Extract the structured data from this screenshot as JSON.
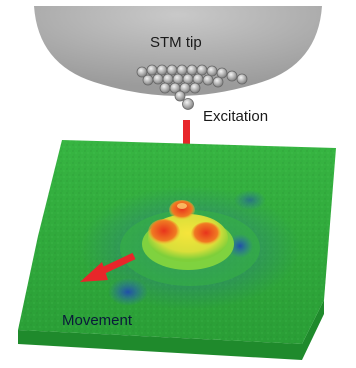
{
  "labels": {
    "tip": "STM tip",
    "excitation": "Excitation",
    "movement": "Movement"
  },
  "colors": {
    "tip_fill": "#a9a9a9",
    "tip_highlight": "#c9c9c9",
    "surface_green": "#2fae3c",
    "surface_dark": "#1d7f2a",
    "surface_blue": "#2f5fb8",
    "molecule_yellow": "#f2e23a",
    "molecule_red": "#e23a1e",
    "arrow_red": "#e8262a"
  },
  "icons": {
    "excitation_arrow": "arrow-down-icon",
    "movement_arrow": "arrow-left-down-icon"
  }
}
